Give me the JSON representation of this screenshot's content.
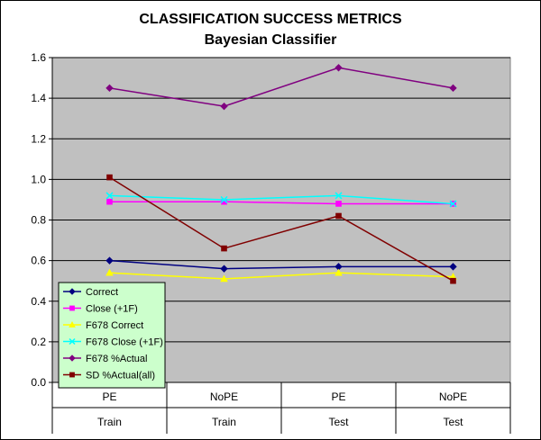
{
  "chart_data": {
    "type": "line",
    "title": "CLASSIFICATION SUCCESS METRICS",
    "subtitle": "Bayesian Classifier",
    "xlabel": "",
    "ylabel": "",
    "ylim": [
      0,
      1.6
    ],
    "yticks": [
      "0.0",
      "0.2",
      "0.4",
      "0.6",
      "0.8",
      "1.0",
      "1.2",
      "1.4",
      "1.6"
    ],
    "grid": true,
    "legend_position": "bottom-left",
    "plot_background": "#c0c0c0",
    "categories": [
      {
        "top": "PE",
        "bottom": "Train"
      },
      {
        "top": "NoPE",
        "bottom": "Train"
      },
      {
        "top": "PE",
        "bottom": "Test"
      },
      {
        "top": "NoPE",
        "bottom": "Test"
      }
    ],
    "series": [
      {
        "name": "Correct",
        "color": "#000080",
        "marker": "diamond",
        "values": [
          0.6,
          0.56,
          0.57,
          0.57
        ]
      },
      {
        "name": "Close (+1F)",
        "color": "#ff00ff",
        "marker": "square",
        "values": [
          0.89,
          0.89,
          0.88,
          0.88
        ]
      },
      {
        "name": "F678 Correct",
        "color": "#ffff00",
        "marker": "triangle",
        "values": [
          0.54,
          0.51,
          0.54,
          0.52
        ]
      },
      {
        "name": "F678 Close (+1F)",
        "color": "#00ffff",
        "marker": "x",
        "values": [
          0.92,
          0.9,
          0.92,
          0.88
        ]
      },
      {
        "name": "F678 %Actual",
        "color": "#800080",
        "marker": "diamond",
        "values": [
          1.45,
          1.36,
          1.55,
          1.45
        ]
      },
      {
        "name": "SD %Actual(all)",
        "color": "#800000",
        "marker": "square",
        "values": [
          1.01,
          0.66,
          0.82,
          0.5
        ]
      }
    ]
  }
}
